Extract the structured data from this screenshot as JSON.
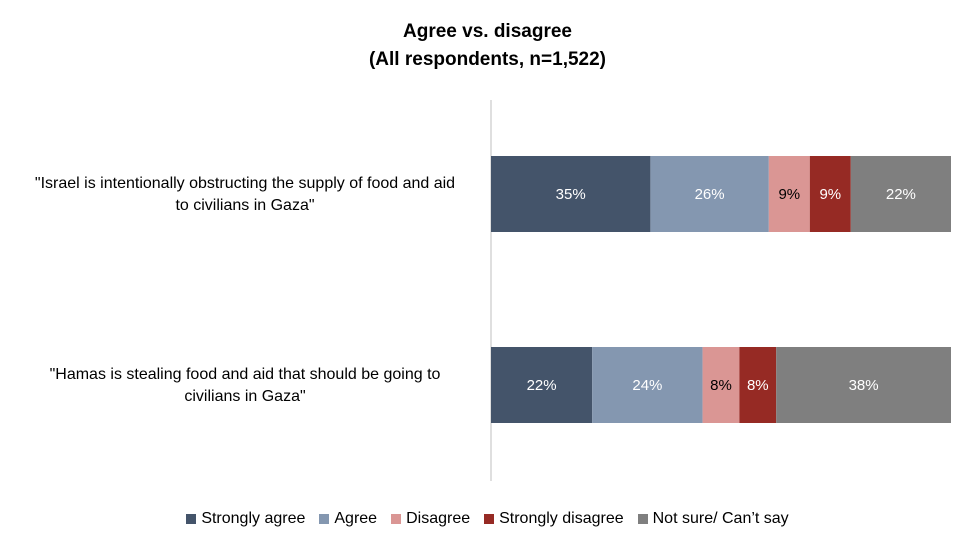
{
  "chart_data": {
    "type": "bar",
    "orientation": "horizontal",
    "stacked": true,
    "title": "Agree vs. disagree",
    "subtitle": "(All respondents,  n=1,522)",
    "categories": [
      "\"Israel is intentionally obstructing the supply of food and aid to civilians in Gaza\"",
      "\"Hamas is stealing food and aid that should be going to civilians in Gaza\""
    ],
    "category_lines": [
      [
        "\"Israel is intentionally obstructing the supply of food and aid",
        "to civilians in Gaza\""
      ],
      [
        "\"Hamas is stealing food and aid that should be going to",
        "civilians in Gaza\""
      ]
    ],
    "series": [
      {
        "name": "Strongly agree",
        "values": [
          35,
          22
        ],
        "labels": [
          "35%",
          "22%"
        ],
        "color": "#44546A",
        "label_color": "#FFFFFF"
      },
      {
        "name": "Agree",
        "values": [
          26,
          24
        ],
        "labels": [
          "26%",
          "24%"
        ],
        "color": "#8497B0",
        "label_color": "#FFFFFF"
      },
      {
        "name": "Disagree",
        "values": [
          9,
          8
        ],
        "labels": [
          "9%",
          "8%"
        ],
        "color": "#DA9694",
        "label_color": "#000000"
      },
      {
        "name": "Strongly disagree",
        "values": [
          9,
          8
        ],
        "labels": [
          "9%",
          "8%"
        ],
        "color": "#962A24",
        "label_color": "#FFFFFF"
      },
      {
        "name": "Not sure/ Can’t say",
        "values": [
          22,
          38
        ],
        "labels": [
          "22%",
          "38%"
        ],
        "color": "#7F7F7F",
        "label_color": "#FFFFFF"
      }
    ],
    "xlim": [
      0,
      100
    ],
    "grid": false,
    "legend": "bottom"
  }
}
